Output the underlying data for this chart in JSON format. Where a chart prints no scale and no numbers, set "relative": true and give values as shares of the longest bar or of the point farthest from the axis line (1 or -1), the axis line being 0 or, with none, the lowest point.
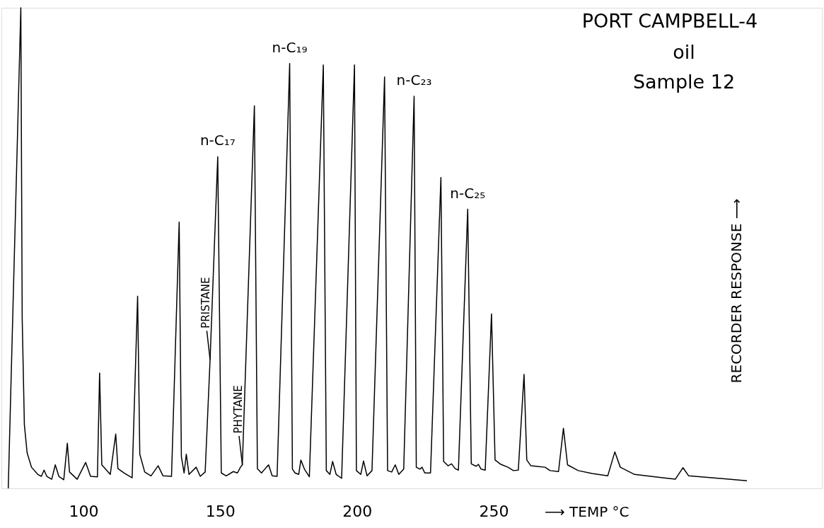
{
  "chart_data": {
    "type": "line",
    "title": "PORT CAMPBELL-4",
    "subtitle": "oil\nSample 12",
    "xlabel": "⟶ TEMP °C",
    "ylabel": "RECORDER RESPONSE ⟶",
    "relative": true,
    "line_style": "solid",
    "xlim": [
      70,
      370
    ],
    "xticks": [
      100,
      150,
      200,
      250
    ],
    "x": [
      72.5,
      77.1,
      77.6,
      78.4,
      79.4,
      81.0,
      83.3,
      84.6,
      85.6,
      86.6,
      88.4,
      89.7,
      91.0,
      92.8,
      94.1,
      94.9,
      97.7,
      100.8,
      102.6,
      105.1,
      105.9,
      106.7,
      109.8,
      111.8,
      112.6,
      114.9,
      117.8,
      119.8,
      120.6,
      122.4,
      124.7,
      127.3,
      129.1,
      132.2,
      135.0,
      135.8,
      136.8,
      137.6,
      138.6,
      141.2,
      142.7,
      144.5,
      146.3,
      149.1,
      150.4,
      152.2,
      154.8,
      156.3,
      157.4,
      158.1,
      162.5,
      163.6,
      165.1,
      166.9,
      167.7,
      169.0,
      170.8,
      175.4,
      176.4,
      177.4,
      178.7,
      179.5,
      180.8,
      182.6,
      187.7,
      188.8,
      190.1,
      191.1,
      192.4,
      194.4,
      199.1,
      199.8,
      201.4,
      202.4,
      203.7,
      205.5,
      210.1,
      211.2,
      212.7,
      214.0,
      215.3,
      217.1,
      220.9,
      221.7,
      223.0,
      223.8,
      224.8,
      226.9,
      230.7,
      231.7,
      233.3,
      234.6,
      235.9,
      237.1,
      240.5,
      241.8,
      243.6,
      244.4,
      245.4,
      246.9,
      249.2,
      250.5,
      252.6,
      255.2,
      257.2,
      259.0,
      261.1,
      262.1,
      263.6,
      265.4,
      268.8,
      270.6,
      273.7,
      275.5,
      277.0,
      280.9,
      286.0,
      291.7,
      294.3,
      296.3,
      301.5,
      311.8,
      316.4,
      319.2,
      321.3,
      329.8,
      342.6
    ],
    "series": [
      {
        "color": "#000000",
        "values": [
          0,
          1,
          0.353,
          0.132,
          0.074,
          0.044,
          0.029,
          0.025,
          0.038,
          0.025,
          0.019,
          0.049,
          0.025,
          0.018,
          0.094,
          0.034,
          0.019,
          0.054,
          0.025,
          0.024,
          0.24,
          0.049,
          0.029,
          0.113,
          0.041,
          0.032,
          0.022,
          0.4,
          0.071,
          0.034,
          0.026,
          0.047,
          0.026,
          0.025,
          0.554,
          0.066,
          0.032,
          0.071,
          0.029,
          0.044,
          0.025,
          0.034,
          0.268,
          0.69,
          0.032,
          0.026,
          0.035,
          0.032,
          0.044,
          0.049,
          0.796,
          0.041,
          0.032,
          0.044,
          0.049,
          0.026,
          0.025,
          0.884,
          0.04,
          0.032,
          0.029,
          0.059,
          0.04,
          0.024,
          0.881,
          0.037,
          0.029,
          0.056,
          0.029,
          0.021,
          0.881,
          0.037,
          0.029,
          0.057,
          0.026,
          0.037,
          0.856,
          0.037,
          0.034,
          0.049,
          0.029,
          0.04,
          0.816,
          0.044,
          0.04,
          0.044,
          0.032,
          0.032,
          0.647,
          0.056,
          0.047,
          0.051,
          0.041,
          0.038,
          0.581,
          0.051,
          0.046,
          0.05,
          0.04,
          0.038,
          0.363,
          0.059,
          0.05,
          0.044,
          0.037,
          0.038,
          0.237,
          0.059,
          0.047,
          0.046,
          0.044,
          0.037,
          0.035,
          0.125,
          0.049,
          0.037,
          0.031,
          0.026,
          0.076,
          0.044,
          0.029,
          0.022,
          0.019,
          0.043,
          0.026,
          0.022,
          0.016
        ]
      }
    ],
    "annotations": [
      {
        "text": "n-C₁₇",
        "x": 149.1,
        "y": 0.69
      },
      {
        "text": "n-C₁₉",
        "x": 175.4,
        "y": 0.884
      },
      {
        "text": "n-C₂₃",
        "x": 220.9,
        "y": 0.816
      },
      {
        "text": "n-C₂₅",
        "x": 240.5,
        "y": 0.581
      },
      {
        "text": "PRISTANE",
        "x": 146.3,
        "y": 0.268
      },
      {
        "text": "PHYTANE",
        "x": 158.1,
        "y": 0.049
      }
    ]
  }
}
